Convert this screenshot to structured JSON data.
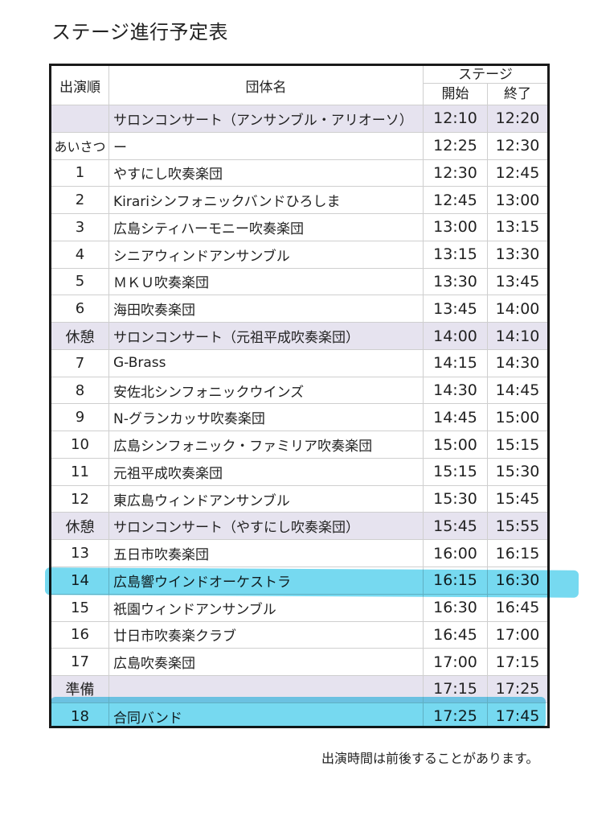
{
  "title": "ステージ進行予定表",
  "header": {
    "order": "出演順",
    "group": "団体名",
    "stage": "ステージ",
    "start": "開始",
    "end": "終了"
  },
  "rows": [
    {
      "order": "",
      "name": "サロンコンサート（アンサンブル・アリオーソ）",
      "start": "12:10",
      "end": "12:20",
      "shaded": true
    },
    {
      "order": "あいさつ",
      "name": "ー",
      "start": "12:25",
      "end": "12:30",
      "shaded": false
    },
    {
      "order": "1",
      "name": "やすにし吹奏楽団",
      "start": "12:30",
      "end": "12:45",
      "shaded": false
    },
    {
      "order": "2",
      "name": "Kirariシンフォニックバンドひろしま",
      "start": "12:45",
      "end": "13:00",
      "shaded": false
    },
    {
      "order": "3",
      "name": "広島シティハーモニー吹奏楽団",
      "start": "13:00",
      "end": "13:15",
      "shaded": false
    },
    {
      "order": "4",
      "name": "シニアウィンドアンサンブル",
      "start": "13:15",
      "end": "13:30",
      "shaded": false
    },
    {
      "order": "5",
      "name": "ＭＫＵ吹奏楽団",
      "start": "13:30",
      "end": "13:45",
      "shaded": false
    },
    {
      "order": "6",
      "name": "海田吹奏楽団",
      "start": "13:45",
      "end": "14:00",
      "shaded": false
    },
    {
      "order": "休憩",
      "name": "サロンコンサート（元祖平成吹奏楽団）",
      "start": "14:00",
      "end": "14:10",
      "shaded": true
    },
    {
      "order": "7",
      "name": "G-Brass",
      "start": "14:15",
      "end": "14:30",
      "shaded": false
    },
    {
      "order": "8",
      "name": "安佐北シンフォニックウインズ",
      "start": "14:30",
      "end": "14:45",
      "shaded": false
    },
    {
      "order": "9",
      "name": "N-グランカッサ吹奏楽団",
      "start": "14:45",
      "end": "15:00",
      "shaded": false
    },
    {
      "order": "10",
      "name": "広島シンフォニック・ファミリア吹奏楽団",
      "start": "15:00",
      "end": "15:15",
      "shaded": false
    },
    {
      "order": "11",
      "name": "元祖平成吹奏楽団",
      "start": "15:15",
      "end": "15:30",
      "shaded": false
    },
    {
      "order": "12",
      "name": "東広島ウィンドアンサンブル",
      "start": "15:30",
      "end": "15:45",
      "shaded": false
    },
    {
      "order": "休憩",
      "name": "サロンコンサート（やすにし吹奏楽団）",
      "start": "15:45",
      "end": "15:55",
      "shaded": true
    },
    {
      "order": "13",
      "name": "五日市吹奏楽団",
      "start": "16:00",
      "end": "16:15",
      "shaded": false
    },
    {
      "order": "14",
      "name": "広島響ウインドオーケストラ",
      "start": "16:15",
      "end": "16:30",
      "shaded": false
    },
    {
      "order": "15",
      "name": "祇園ウィンドアンサンブル",
      "start": "16:30",
      "end": "16:45",
      "shaded": false
    },
    {
      "order": "16",
      "name": "廿日市吹奏楽クラブ",
      "start": "16:45",
      "end": "17:00",
      "shaded": false
    },
    {
      "order": "17",
      "name": "広島吹奏楽団",
      "start": "17:00",
      "end": "17:15",
      "shaded": false
    },
    {
      "order": "準備",
      "name": "",
      "start": "17:15",
      "end": "17:25",
      "shaded": true
    },
    {
      "order": "18",
      "name": "合同バンド",
      "start": "17:25",
      "end": "17:45",
      "shaded": false
    }
  ],
  "note": "出演時間は前後することがあります。",
  "colors": {
    "shade": "#e6e3ef",
    "highlight": "#5ed2ee",
    "border": "#1a1a1a"
  }
}
